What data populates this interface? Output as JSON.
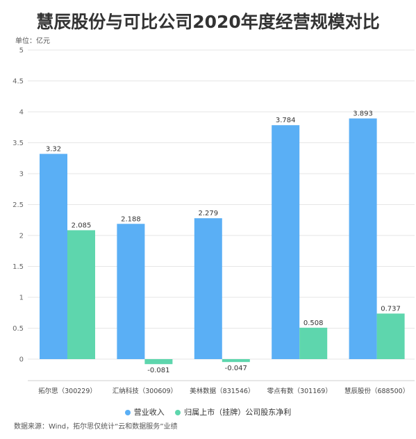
{
  "chart_data": {
    "type": "bar",
    "title": "慧辰股份与可比公司2020年度经营规模对比",
    "unit_label": "单位：亿元",
    "categories": [
      "拓尔思（300229）",
      "汇纳科技（300609）",
      "美林数据（831546）",
      "零点有数（301169）",
      "慧辰股份（688500）"
    ],
    "series": [
      {
        "name": "营业收入",
        "color": "#5aaff5",
        "values": [
          3.32,
          2.188,
          2.279,
          3.784,
          3.893
        ],
        "labels": [
          "3.32",
          "2.188",
          "2.279",
          "3.784",
          "3.893"
        ]
      },
      {
        "name": "归属上市（挂牌）公司股东净利",
        "color": "#5ed6ad",
        "values": [
          2.085,
          -0.081,
          -0.047,
          0.508,
          0.737
        ],
        "labels": [
          "2.085",
          "-0.081",
          "-0.047",
          "0.508",
          "0.737"
        ]
      }
    ],
    "ylim": [
      0,
      5
    ],
    "yticks": [
      "0",
      "0.5",
      "1",
      "1.5",
      "2",
      "2.5",
      "3",
      "3.5",
      "4",
      "4.5",
      "5"
    ],
    "grid": true,
    "legend_position": "bottom"
  },
  "source": "数据来源：Wind，拓尔思仅统计“云和数据服务”业绩"
}
